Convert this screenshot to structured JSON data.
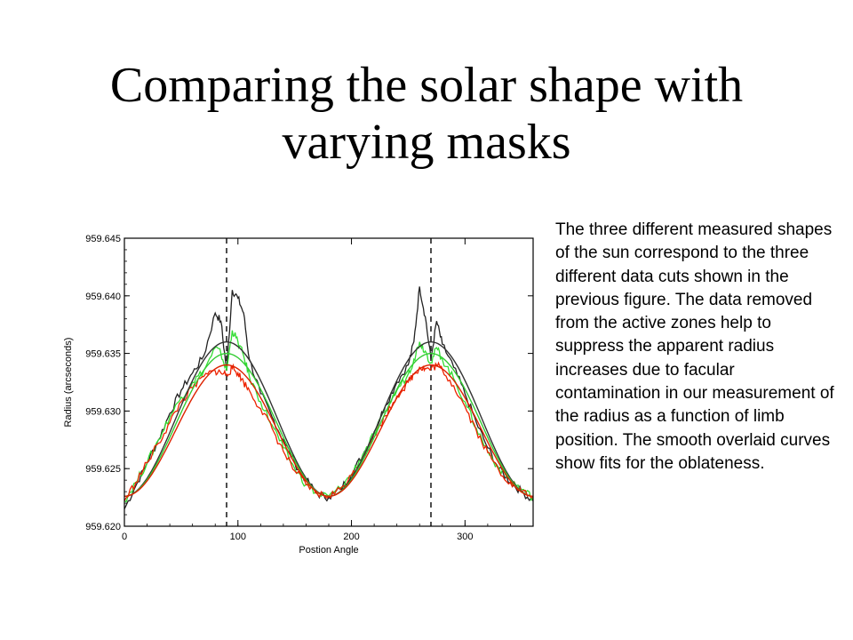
{
  "title_line1": "Comparing the solar shape with",
  "title_line2": "varying masks",
  "caption": "The three different measured shapes of the sun correspond to the three different data cuts shown in the previous figure. The data removed from the active zones help to suppress the apparent radius increases due to facular contamination in our measurement of the radius as a function of limb position. The smooth overlaid curves show fits for the oblateness.",
  "colors": {
    "black_series": "#222222",
    "green_series": "#33dd33",
    "red_series": "#ee2200",
    "fit_black": "#333333",
    "fit_green": "#33cc33",
    "fit_red": "#dd2200"
  },
  "chart_data": {
    "type": "line",
    "title": "",
    "xlabel": "Postion Angle",
    "ylabel": "Radius (arcseconds)",
    "xlim": [
      0,
      360
    ],
    "ylim": [
      959.62,
      959.645
    ],
    "x_ticks": [
      0,
      100,
      200,
      300
    ],
    "y_ticks": [
      "959.620",
      "959.625",
      "959.630",
      "959.635",
      "959.640",
      "959.645"
    ],
    "vlines": [
      90,
      270
    ],
    "x": [
      0,
      10,
      20,
      30,
      40,
      50,
      60,
      70,
      80,
      85,
      90,
      95,
      100,
      105,
      110,
      120,
      130,
      140,
      150,
      160,
      170,
      180,
      190,
      200,
      210,
      220,
      230,
      240,
      250,
      255,
      260,
      265,
      270,
      275,
      280,
      290,
      300,
      310,
      320,
      330,
      340,
      350,
      360
    ],
    "series": [
      {
        "values": [
          959.6215,
          959.6235,
          959.6255,
          959.6275,
          959.6298,
          959.6318,
          959.6333,
          959.6348,
          959.6385,
          959.6378,
          959.6335,
          959.6405,
          959.6398,
          959.6385,
          959.6345,
          959.6315,
          959.6295,
          959.6275,
          959.6255,
          959.624,
          959.6228,
          959.6225,
          959.6232,
          959.6245,
          959.6262,
          959.6282,
          959.6305,
          959.6325,
          959.634,
          959.636,
          959.6408,
          959.6382,
          959.6345,
          959.6378,
          959.6358,
          959.6338,
          959.6315,
          959.629,
          959.6268,
          959.625,
          959.6238,
          959.623,
          959.6222
        ]
      },
      {
        "values": [
          959.6222,
          959.6238,
          959.6255,
          959.6275,
          959.6295,
          959.6312,
          959.6325,
          959.6335,
          959.6355,
          959.635,
          959.6335,
          959.637,
          959.636,
          959.6348,
          959.633,
          959.6308,
          959.6288,
          959.6268,
          959.625,
          959.6236,
          959.6228,
          959.6226,
          959.6233,
          959.6245,
          959.6262,
          959.628,
          959.63,
          959.6318,
          959.6332,
          959.6345,
          959.636,
          959.6352,
          959.6342,
          959.6355,
          959.6345,
          959.6328,
          959.6308,
          959.6285,
          959.6265,
          959.625,
          959.624,
          959.6232,
          959.6225
        ]
      },
      {
        "values": [
          959.6222,
          959.6238,
          959.6255,
          959.6272,
          959.629,
          959.6308,
          959.632,
          959.633,
          959.6335,
          959.6333,
          959.6332,
          959.6337,
          959.6333,
          959.6325,
          959.6318,
          959.6302,
          959.6285,
          959.6265,
          959.6248,
          959.6236,
          959.6228,
          959.6226,
          959.6232,
          959.6244,
          959.626,
          959.6278,
          959.6296,
          959.6313,
          959.6325,
          959.6332,
          959.6338,
          959.6337,
          959.6336,
          959.634,
          959.6336,
          959.6322,
          959.6304,
          959.6283,
          959.6264,
          959.6248,
          959.6238,
          959.623,
          959.6225
        ]
      }
    ],
    "fits": [
      {
        "mean": 959.6293,
        "amp": 0.0067
      },
      {
        "mean": 959.6288,
        "amp": 0.0062
      },
      {
        "mean": 959.6283,
        "amp": 0.0057
      }
    ]
  }
}
